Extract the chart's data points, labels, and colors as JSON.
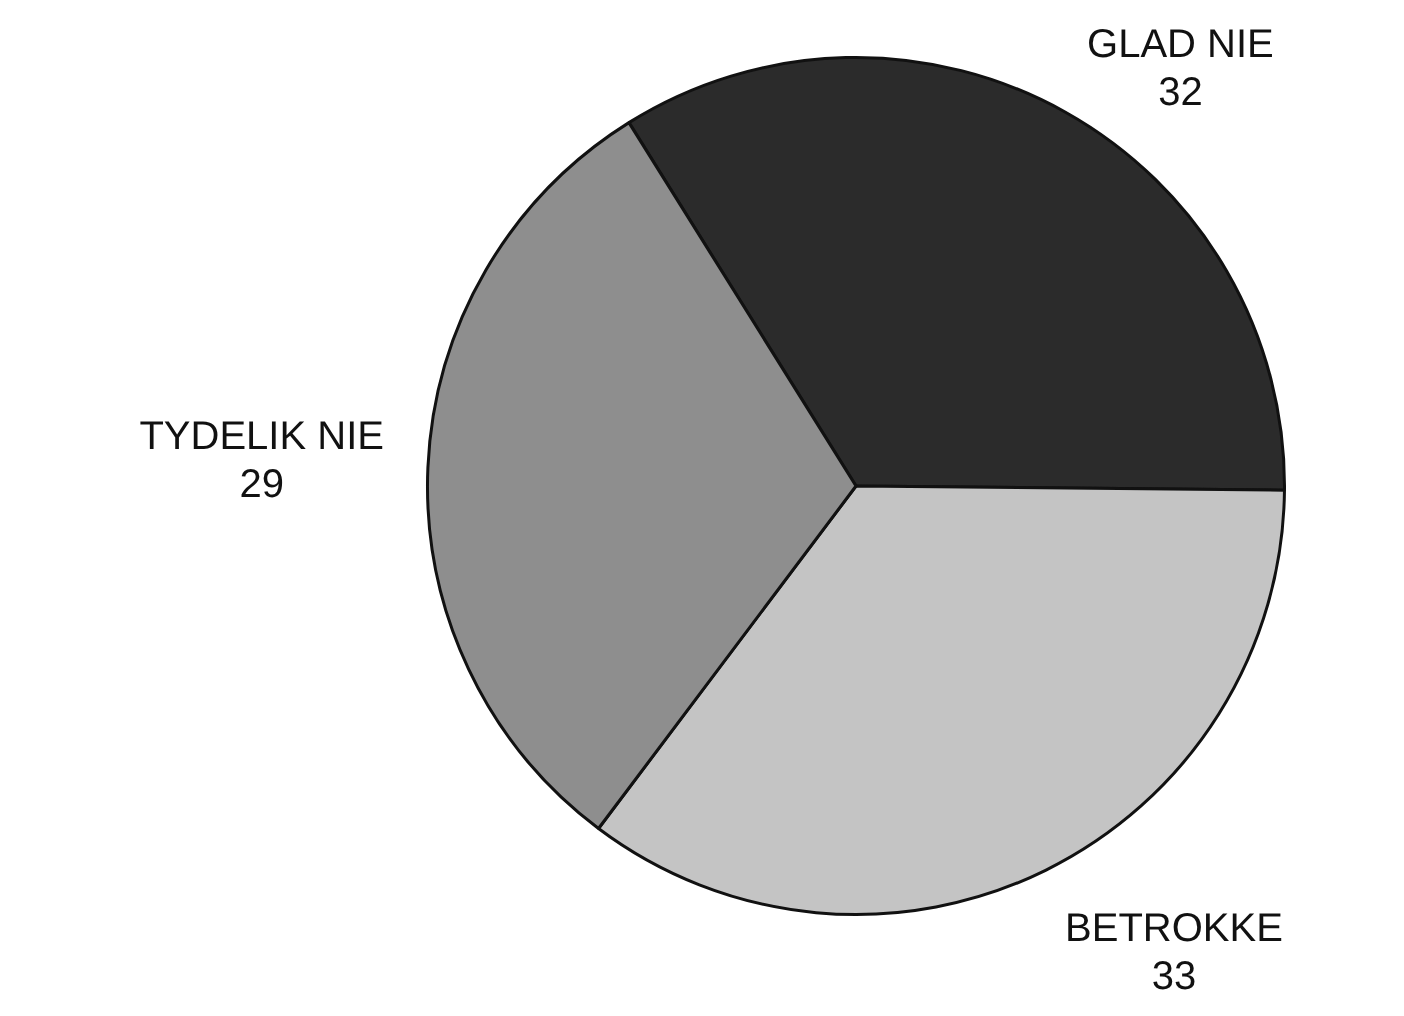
{
  "chart_data": {
    "type": "pie",
    "categories": [
      "GLAD NIE",
      "BETROKKE",
      "TYDELIK NIE"
    ],
    "values": [
      32,
      33,
      29
    ],
    "colors": [
      "#2b2b2b",
      "#c4c4c4",
      "#8e8e8e"
    ],
    "data_labels": true,
    "legend": false
  }
}
